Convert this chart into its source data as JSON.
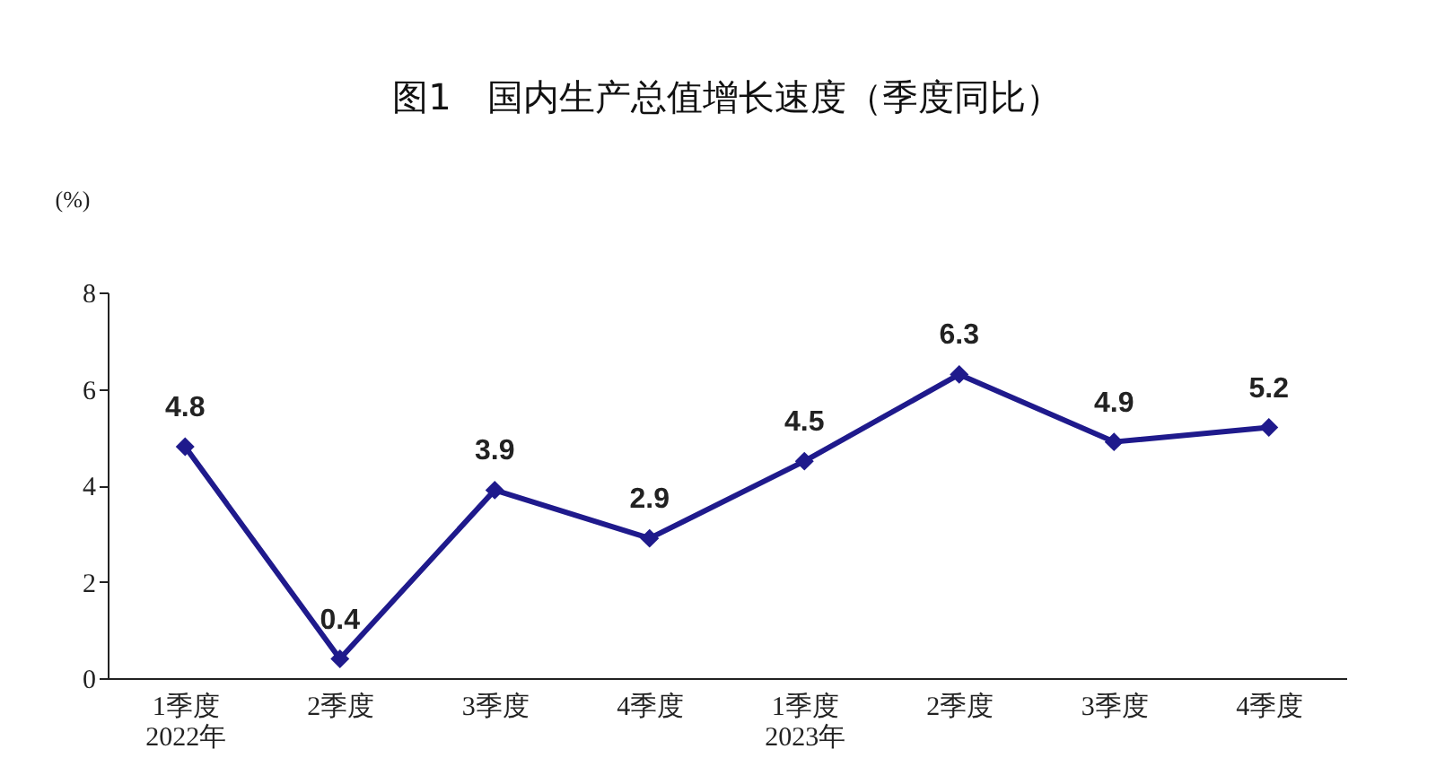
{
  "chart_data": {
    "type": "line",
    "title": "图1　国内生产总值增长速度（季度同比）",
    "ylabel": "(%)",
    "categories": [
      "1季度\n2022年",
      "2季度",
      "3季度",
      "4季度",
      "1季度\n2023年",
      "2季度",
      "3季度",
      "4季度"
    ],
    "series": [
      {
        "color": "#1f1a8c",
        "values": [
          4.8,
          0.4,
          3.9,
          2.9,
          4.5,
          6.3,
          4.9,
          5.2
        ]
      }
    ],
    "ylim": [
      0,
      8
    ],
    "yticks": [
      0,
      2,
      4,
      6,
      8
    ],
    "grid": false,
    "marker": "diamond",
    "line_style": "solid",
    "data_labels": true
  }
}
